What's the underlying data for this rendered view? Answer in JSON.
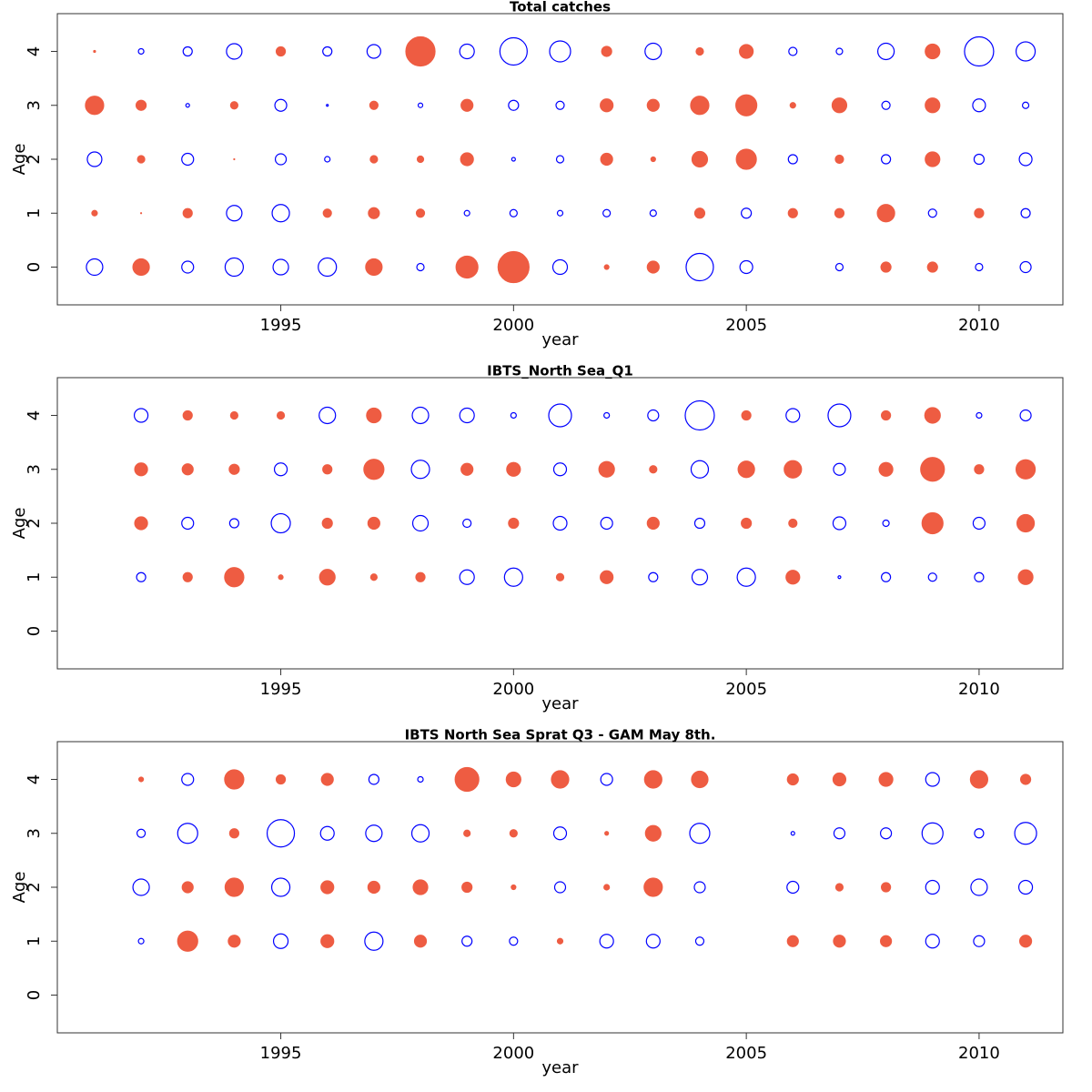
{
  "chart_data": [
    {
      "type": "bubble",
      "title": "Total catches",
      "x_label": "year",
      "y_label": "Age",
      "x": [
        1991,
        1992,
        1993,
        1994,
        1995,
        1996,
        1997,
        1998,
        1999,
        2000,
        2001,
        2002,
        2003,
        2004,
        2005,
        2006,
        2007,
        2008,
        2009,
        2010,
        2011
      ],
      "ages": [
        0,
        1,
        2,
        3,
        4
      ],
      "residuals": [
        [
          -1.8,
          1.8,
          -1.3,
          -2,
          -1.7,
          -2,
          1.8,
          -0.8,
          2.4,
          3.4,
          -1.6,
          0.5,
          1.3,
          -3,
          -1.4,
          null,
          -0.8,
          1.1,
          1.1,
          -0.8,
          -1.2
        ],
        [
          0.6,
          0.1,
          1,
          -1.7,
          -1.9,
          0.9,
          1.2,
          0.9,
          -0.6,
          -0.8,
          -0.6,
          -0.8,
          -0.7,
          1.1,
          -1.1,
          1,
          1,
          1.9,
          -0.9,
          1,
          -1
        ],
        [
          -1.6,
          0.8,
          -1.3,
          0.1,
          -1.2,
          -0.6,
          0.8,
          0.7,
          1.4,
          -0.4,
          -0.8,
          1.3,
          0.5,
          1.7,
          2.2,
          -1,
          0.9,
          -1,
          1.6,
          -1.1,
          -1.4
        ],
        [
          2,
          1.1,
          -0.4,
          0.8,
          -1.3,
          -0.2,
          0.9,
          -0.5,
          1.3,
          -1.1,
          -0.9,
          1.4,
          1.3,
          2,
          2.3,
          0.6,
          1.6,
          -0.9,
          1.6,
          -1.4,
          -0.7
        ],
        [
          0.2,
          -0.6,
          -1,
          -1.7,
          1,
          -1,
          -1.5,
          3.2,
          -1.6,
          -3,
          -2.3,
          1.1,
          -1.8,
          0.8,
          1.5,
          -0.9,
          -0.7,
          -1.8,
          1.6,
          -3.2,
          -2.1
        ]
      ],
      "xlim": [
        1990.2,
        2011.8
      ],
      "ylim": [
        -0.7,
        4.7
      ],
      "xticks": [
        1995,
        2000,
        2005,
        2010
      ],
      "yticks": [
        0,
        1,
        2,
        3,
        4
      ],
      "positive_color": "#ee5c42",
      "negative_color": "#0000ff"
    },
    {
      "type": "bubble",
      "title": "IBTS_North Sea_Q1",
      "x_label": "year",
      "y_label": "Age",
      "x": [
        1992,
        1993,
        1994,
        1995,
        1996,
        1997,
        1998,
        1999,
        2000,
        2001,
        2002,
        2003,
        2004,
        2005,
        2006,
        2007,
        2008,
        2009,
        2010,
        2011
      ],
      "ages": [
        1,
        2,
        3,
        4
      ],
      "residuals": [
        [
          -1,
          1,
          2.1,
          0.5,
          1.7,
          0.7,
          1,
          -1.6,
          -2,
          0.8,
          1.4,
          -1,
          -1.7,
          -2,
          1.5,
          -0.3,
          -1,
          -0.9,
          -1,
          1.6
        ],
        [
          1.4,
          -1.3,
          -1,
          -2.1,
          1.1,
          1.3,
          -1.7,
          -0.9,
          1.1,
          -1.5,
          -1.3,
          1.3,
          -1.1,
          1.1,
          0.9,
          -1.4,
          -0.7,
          2.3,
          -1.3,
          1.9
        ],
        [
          1.4,
          1.2,
          1.1,
          -1.4,
          1,
          2.2,
          -2,
          1.3,
          1.5,
          -1.4,
          1.7,
          0.8,
          -1.9,
          1.8,
          1.9,
          -1.3,
          1.5,
          2.6,
          1,
          2.1
        ],
        [
          -1.5,
          1,
          0.8,
          0.8,
          -1.8,
          1.6,
          -1.8,
          -1.6,
          -0.6,
          -2.5,
          -0.6,
          -1.2,
          -3.2,
          1,
          -1.5,
          -2.5,
          1,
          1.7,
          -0.6,
          -1.2
        ]
      ],
      "xlim": [
        1990.2,
        2011.8
      ],
      "ylim": [
        -0.7,
        4.7
      ],
      "xticks": [
        1995,
        2000,
        2005,
        2010
      ],
      "yticks": [
        0,
        1,
        2,
        3,
        4
      ],
      "positive_color": "#ee5c42",
      "negative_color": "#0000ff"
    },
    {
      "type": "bubble",
      "title": "IBTS North Sea Sprat Q3 - GAM May 8th.",
      "x_label": "year",
      "y_label": "Age",
      "x": [
        1992,
        1993,
        1994,
        1995,
        1996,
        1997,
        1998,
        1999,
        2000,
        2001,
        2002,
        2003,
        2004,
        2005,
        2006,
        2007,
        2008,
        2009,
        2010,
        2011
      ],
      "ages": [
        1,
        2,
        3,
        4
      ],
      "residuals": [
        [
          -0.6,
          2.2,
          1.3,
          -1.6,
          1.4,
          -2,
          1.3,
          -1.1,
          -0.9,
          0.6,
          -1.5,
          -1.5,
          -0.9,
          null,
          1.2,
          1.3,
          1.2,
          -1.5,
          -1.2,
          1.3
        ],
        [
          -1.8,
          1.2,
          2,
          -2,
          1.4,
          1.3,
          1.6,
          1.1,
          0.5,
          -1.2,
          0.6,
          2,
          -1.2,
          null,
          -1.3,
          0.8,
          1,
          -1.5,
          -1.8,
          -1.5
        ],
        [
          -0.9,
          -2.2,
          1,
          -3,
          -1.5,
          -1.8,
          -1.9,
          0.7,
          0.8,
          -1.4,
          0.4,
          1.7,
          -2.2,
          null,
          -0.4,
          -1.2,
          -1.2,
          -2.3,
          -1,
          -2.4
        ],
        [
          0.5,
          -1.3,
          2.1,
          1,
          1.3,
          -1.1,
          -0.6,
          2.6,
          1.6,
          1.9,
          -1.3,
          1.9,
          1.8,
          null,
          1.2,
          1.4,
          1.5,
          -1.5,
          1.9,
          1.1
        ]
      ],
      "xlim": [
        1990.2,
        2011.8
      ],
      "ylim": [
        -0.7,
        4.7
      ],
      "xticks": [
        1995,
        2000,
        2005,
        2010
      ],
      "yticks": [
        0,
        1,
        2,
        3,
        4
      ],
      "positive_color": "#ee5c42",
      "negative_color": "#0000ff"
    }
  ]
}
